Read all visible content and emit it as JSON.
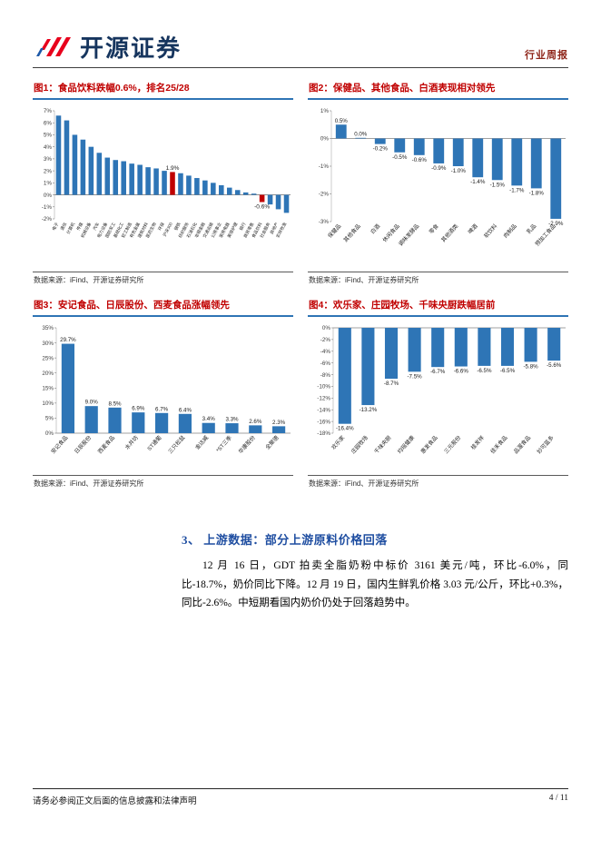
{
  "header": {
    "logo_text": "开源证券",
    "report_type": "行业周报"
  },
  "section": {
    "heading": "3、 上游数据：部分上游原料价格回落",
    "paragraph": "12 月 16 日，GDT 拍卖全脂奶粉中标价 3161 美元/吨，环比-6.0%，同比-18.7%，奶价同比下降。12 月 19 日，国内生鲜乳价格 3.03 元/公斤，环比+0.3%，同比-2.6%。中短期看国内奶价仍处于回落趋势中。"
  },
  "footer": {
    "disclaimer": "请务必参阅正文后面的信息披露和法律声明",
    "page": "4 / 11"
  },
  "colors": {
    "accent_red": "#c00000",
    "bar_blue": "#2e75b6",
    "heading_blue": "#1f4ea1"
  },
  "chart_data": [
    {
      "type": "bar",
      "title": "图1：食品饮料跌幅0.6%，排名25/28",
      "source": "数据来源：iFind、开源证券研究所",
      "ylim": [
        -2,
        7
      ],
      "ytick": 1,
      "categories": [
        "电子",
        "通信",
        "计算机",
        "传媒",
        "机械设备",
        "汽车",
        "电力设备",
        "国防军工",
        "基础化工",
        "轻工制造",
        "有色金属",
        "建筑材料",
        "医药生物",
        "环保",
        "沪深300",
        "钢铁",
        "纺织服饰",
        "石油石化",
        "非银金融",
        "交通运输",
        "公用事业",
        "家用电器",
        "美容护理",
        "银行",
        "商贸零售",
        "食品饮料",
        "社会服务",
        "房地产",
        "农林牧渔"
      ],
      "values": [
        6.6,
        6.2,
        5.0,
        4.6,
        4.0,
        3.5,
        3.1,
        2.9,
        2.8,
        2.6,
        2.5,
        2.3,
        2.2,
        2.0,
        1.9,
        1.8,
        1.6,
        1.4,
        1.2,
        1.0,
        0.8,
        0.6,
        0.4,
        0.2,
        0.1,
        -0.6,
        -0.8,
        -1.2,
        -1.5
      ],
      "bar_color": "#2e75b6",
      "highlight_color": "#c00000",
      "highlight_indices": [
        14,
        25
      ],
      "value_labels": {
        "14": "1.9%",
        "25": "-0.6%"
      }
    },
    {
      "type": "bar",
      "title": "图2：保健品、其他食品、白酒表现相对领先",
      "source": "数据来源：iFind、开源证券研究所",
      "ylim": [
        -3,
        1
      ],
      "ytick": 1,
      "categories": [
        "保健品",
        "其他食品",
        "白酒",
        "休闲食品",
        "调味发酵品",
        "零食",
        "其他酒类",
        "啤酒",
        "软饮料",
        "肉制品",
        "乳品",
        "预加工食品"
      ],
      "values": [
        0.5,
        0.0,
        -0.2,
        -0.5,
        -0.6,
        -0.9,
        -1.0,
        -1.4,
        -1.5,
        -1.7,
        -1.8,
        -2.9
      ],
      "bar_color": "#2e75b6",
      "highlight_color": "#c00000",
      "highlight_indices": [],
      "value_labels": "all"
    },
    {
      "type": "bar",
      "title": "图3：安记食品、日辰股份、西麦食品涨幅领先",
      "source": "数据来源：iFind、开源证券研究所",
      "ylim": [
        0,
        35
      ],
      "ytick": 5,
      "categories": [
        "安记食品",
        "日辰股份",
        "西麦食品",
        "水井坊",
        "ST通葡",
        "三只松鼠",
        "金达威",
        "*ST三季",
        "华康股份",
        "全聚德"
      ],
      "values": [
        29.7,
        9.0,
        8.5,
        6.9,
        6.7,
        6.4,
        3.4,
        3.3,
        2.6,
        2.3
      ],
      "bar_color": "#2e75b6",
      "highlight_color": "#c00000",
      "highlight_indices": [],
      "value_labels": "all"
    },
    {
      "type": "bar",
      "title": "图4：欢乐家、庄园牧场、千味央厨跌幅居前",
      "source": "数据来源：iFind、开源证券研究所",
      "ylim": [
        -18,
        0
      ],
      "ytick": 2,
      "categories": [
        "欢乐家",
        "庄园牧场",
        "千味央厨",
        "均瑶健康",
        "惠发食品",
        "三元股份",
        "桂发祥",
        "佳禾食品",
        "品渥食品",
        "妙可蓝多"
      ],
      "values": [
        -16.4,
        -13.2,
        -8.7,
        -7.5,
        -6.7,
        -6.6,
        -6.5,
        -6.5,
        -5.8,
        -5.6
      ],
      "bar_color": "#2e75b6",
      "highlight_color": "#c00000",
      "highlight_indices": [],
      "value_labels": "all"
    }
  ]
}
